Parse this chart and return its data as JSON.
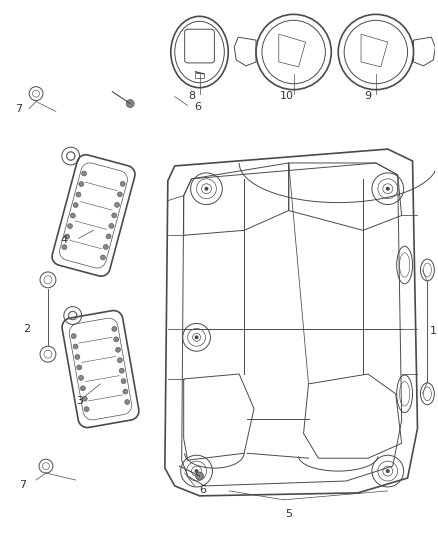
{
  "bg_color": "#ffffff",
  "line_color": "#4a4a4a",
  "label_color": "#333333",
  "figsize": [
    4.38,
    5.33
  ],
  "dpi": 100
}
